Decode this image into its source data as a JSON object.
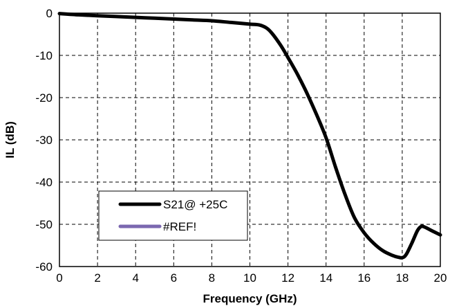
{
  "chart_data": {
    "type": "line",
    "xlabel": "Frequency (GHz)",
    "ylabel": "IL (dB)",
    "xlim": [
      0,
      20
    ],
    "ylim": [
      -60,
      0
    ],
    "xticks": [
      "0",
      "2",
      "4",
      "6",
      "8",
      "10",
      "12",
      "14",
      "16",
      "18",
      "20"
    ],
    "yticks": [
      "0",
      "-10",
      "-20",
      "-30",
      "-40",
      "-50",
      "-60"
    ],
    "grid": true,
    "grid_style": "dashed",
    "legend_position": "bottom-left",
    "series": [
      {
        "name": "S21@ +25C",
        "color": "#000000",
        "x": [
          0,
          1,
          2,
          3,
          4,
          5,
          6,
          7,
          8,
          9,
          10,
          10.5,
          10.9,
          11.2,
          11.6,
          12.0,
          12.5,
          13.0,
          13.5,
          14.0,
          14.5,
          15.0,
          15.5,
          16.0,
          16.5,
          17.0,
          17.5,
          17.8,
          18.0,
          18.2,
          18.5,
          18.8,
          19.0,
          19.2,
          19.5,
          20.0
        ],
        "y": [
          -0.1,
          -0.4,
          -0.6,
          -0.8,
          -1.0,
          -1.2,
          -1.4,
          -1.6,
          -1.8,
          -2.2,
          -2.6,
          -2.8,
          -3.6,
          -5.0,
          -7.5,
          -10.5,
          -14.5,
          -19.0,
          -24.0,
          -29.5,
          -36.5,
          -43.0,
          -48.5,
          -52.0,
          -54.5,
          -56.3,
          -57.4,
          -57.8,
          -57.9,
          -57.2,
          -54.5,
          -51.5,
          -50.5,
          -50.7,
          -51.4,
          -52.5
        ]
      },
      {
        "name": "#REF!",
        "color": "#7b68b0",
        "x": [],
        "y": []
      }
    ]
  }
}
